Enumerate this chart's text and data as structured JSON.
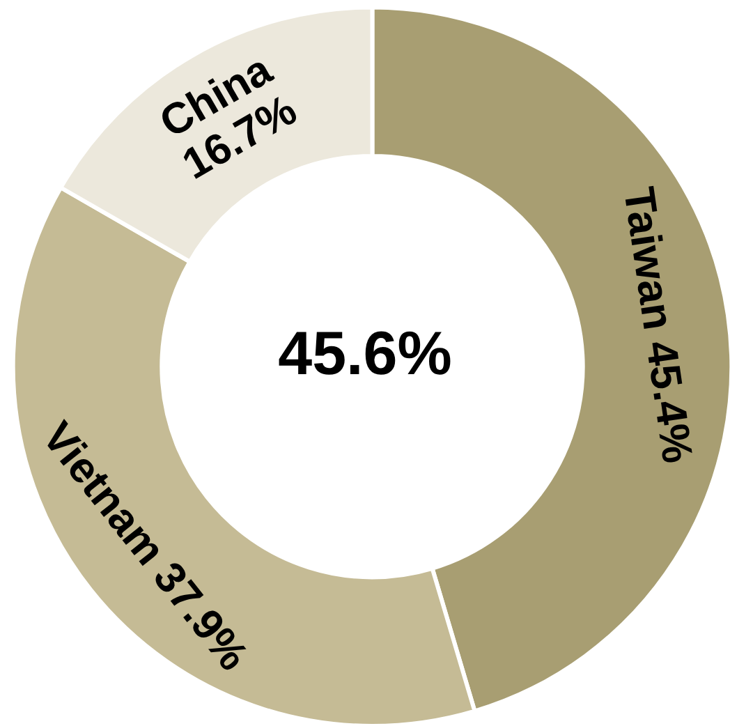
{
  "chart_data": {
    "type": "donut",
    "categories": [
      "Taiwan",
      "Vietnam",
      "China"
    ],
    "values": [
      45.4,
      37.9,
      16.7
    ],
    "colors": [
      "#a89e72",
      "#c5bb95",
      "#ece8dc"
    ],
    "value_labels": [
      "45.4%",
      "37.9%",
      "16.7%"
    ],
    "annotations": [
      "45.6%"
    ]
  }
}
